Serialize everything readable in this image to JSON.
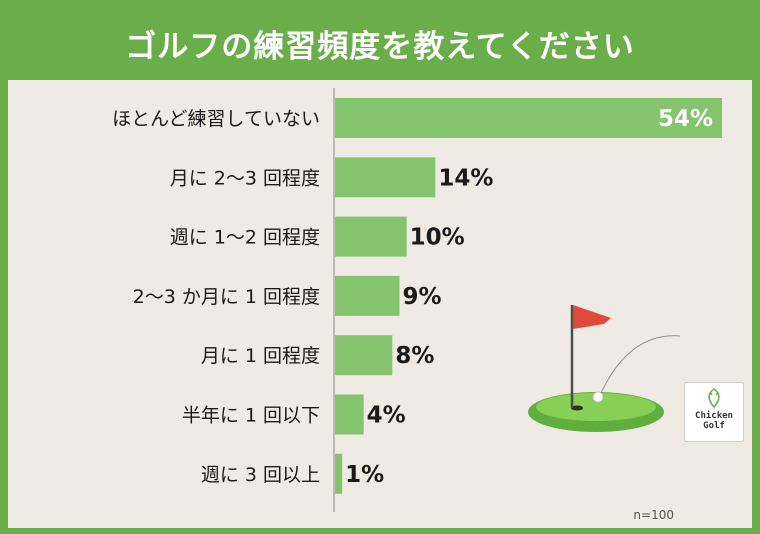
{
  "title": "ゴルフの練習頻度を教えてください",
  "sample_size": "n=100",
  "logo": {
    "line1": "Chicken",
    "line2": "Golf"
  },
  "colors": {
    "background": "#6aae4a",
    "panel": "#efeae4",
    "bar": "#84c46c",
    "text": "#1a1a1a"
  },
  "chart_data": {
    "type": "bar",
    "orientation": "horizontal",
    "categories": [
      "ほとんど練習していない",
      "月に 2〜3 回程度",
      "週に 1〜2 回程度",
      "2〜3 か月に 1 回程度",
      "月に 1 回程度",
      "半年に 1 回以下",
      "週に 3 回以上"
    ],
    "values": [
      54,
      14,
      10,
      9,
      8,
      4,
      1
    ],
    "value_labels": [
      "54%",
      "14%",
      "10%",
      "9%",
      "8%",
      "4%",
      "1%"
    ],
    "unit": "%",
    "xlim": [
      0,
      54
    ],
    "grid": false,
    "legend": "none"
  }
}
